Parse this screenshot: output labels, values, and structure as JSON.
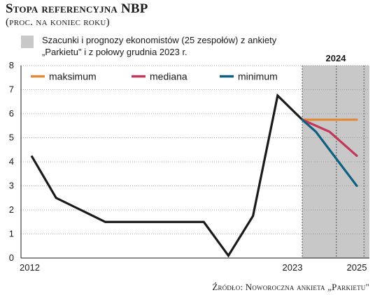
{
  "title": "Stopa referencyjna NBP",
  "subtitle": "(proc. na koniec roku)",
  "note": {
    "line1": "Szacunki i prognozy ekonomistów (25 zespołów) z ankiety",
    "line2": "„Parkietu\" i z połowy grudnia 2023 r."
  },
  "source": "Źródło: Noworoczna ankieta „Parkietu\"",
  "colors": {
    "history": "#1a1a1a",
    "maksimum": "#e08a3c",
    "mediana": "#c0395a",
    "minimum": "#0f5f80",
    "forecast_band": "#c8c8c8"
  },
  "chart_data": {
    "type": "line",
    "ylim": [
      0,
      8
    ],
    "yticks": [
      0,
      1,
      2,
      3,
      4,
      5,
      6,
      7,
      8
    ],
    "xlim": [
      2012,
      2025
    ],
    "x_labels": [
      {
        "x": 2012,
        "label": "2012"
      },
      {
        "x": 2023,
        "label": "2023"
      },
      {
        "x": 2025,
        "label": "2025"
      }
    ],
    "band_label": "2024",
    "band_range": [
      2023,
      2025
    ],
    "history": {
      "x": [
        2012,
        2013,
        2014,
        2015,
        2016,
        2017,
        2018,
        2019,
        2020,
        2021,
        2022,
        2023
      ],
      "values": [
        4.25,
        2.5,
        2.0,
        1.5,
        1.5,
        1.5,
        1.5,
        1.5,
        0.1,
        1.75,
        6.75,
        5.75
      ]
    },
    "series": [
      {
        "name": "maksimum",
        "x": [
          2023,
          2023.5,
          2024,
          2024.5,
          2025
        ],
        "values": [
          5.75,
          5.75,
          5.75,
          5.75,
          5.75
        ]
      },
      {
        "name": "mediana",
        "x": [
          2023,
          2023.5,
          2024,
          2024.5,
          2025
        ],
        "values": [
          5.75,
          5.5,
          5.25,
          4.75,
          4.25
        ]
      },
      {
        "name": "minimum",
        "x": [
          2023,
          2023.5,
          2024,
          2024.5,
          2025
        ],
        "values": [
          5.75,
          5.25,
          4.5,
          3.75,
          3.0
        ]
      }
    ]
  }
}
